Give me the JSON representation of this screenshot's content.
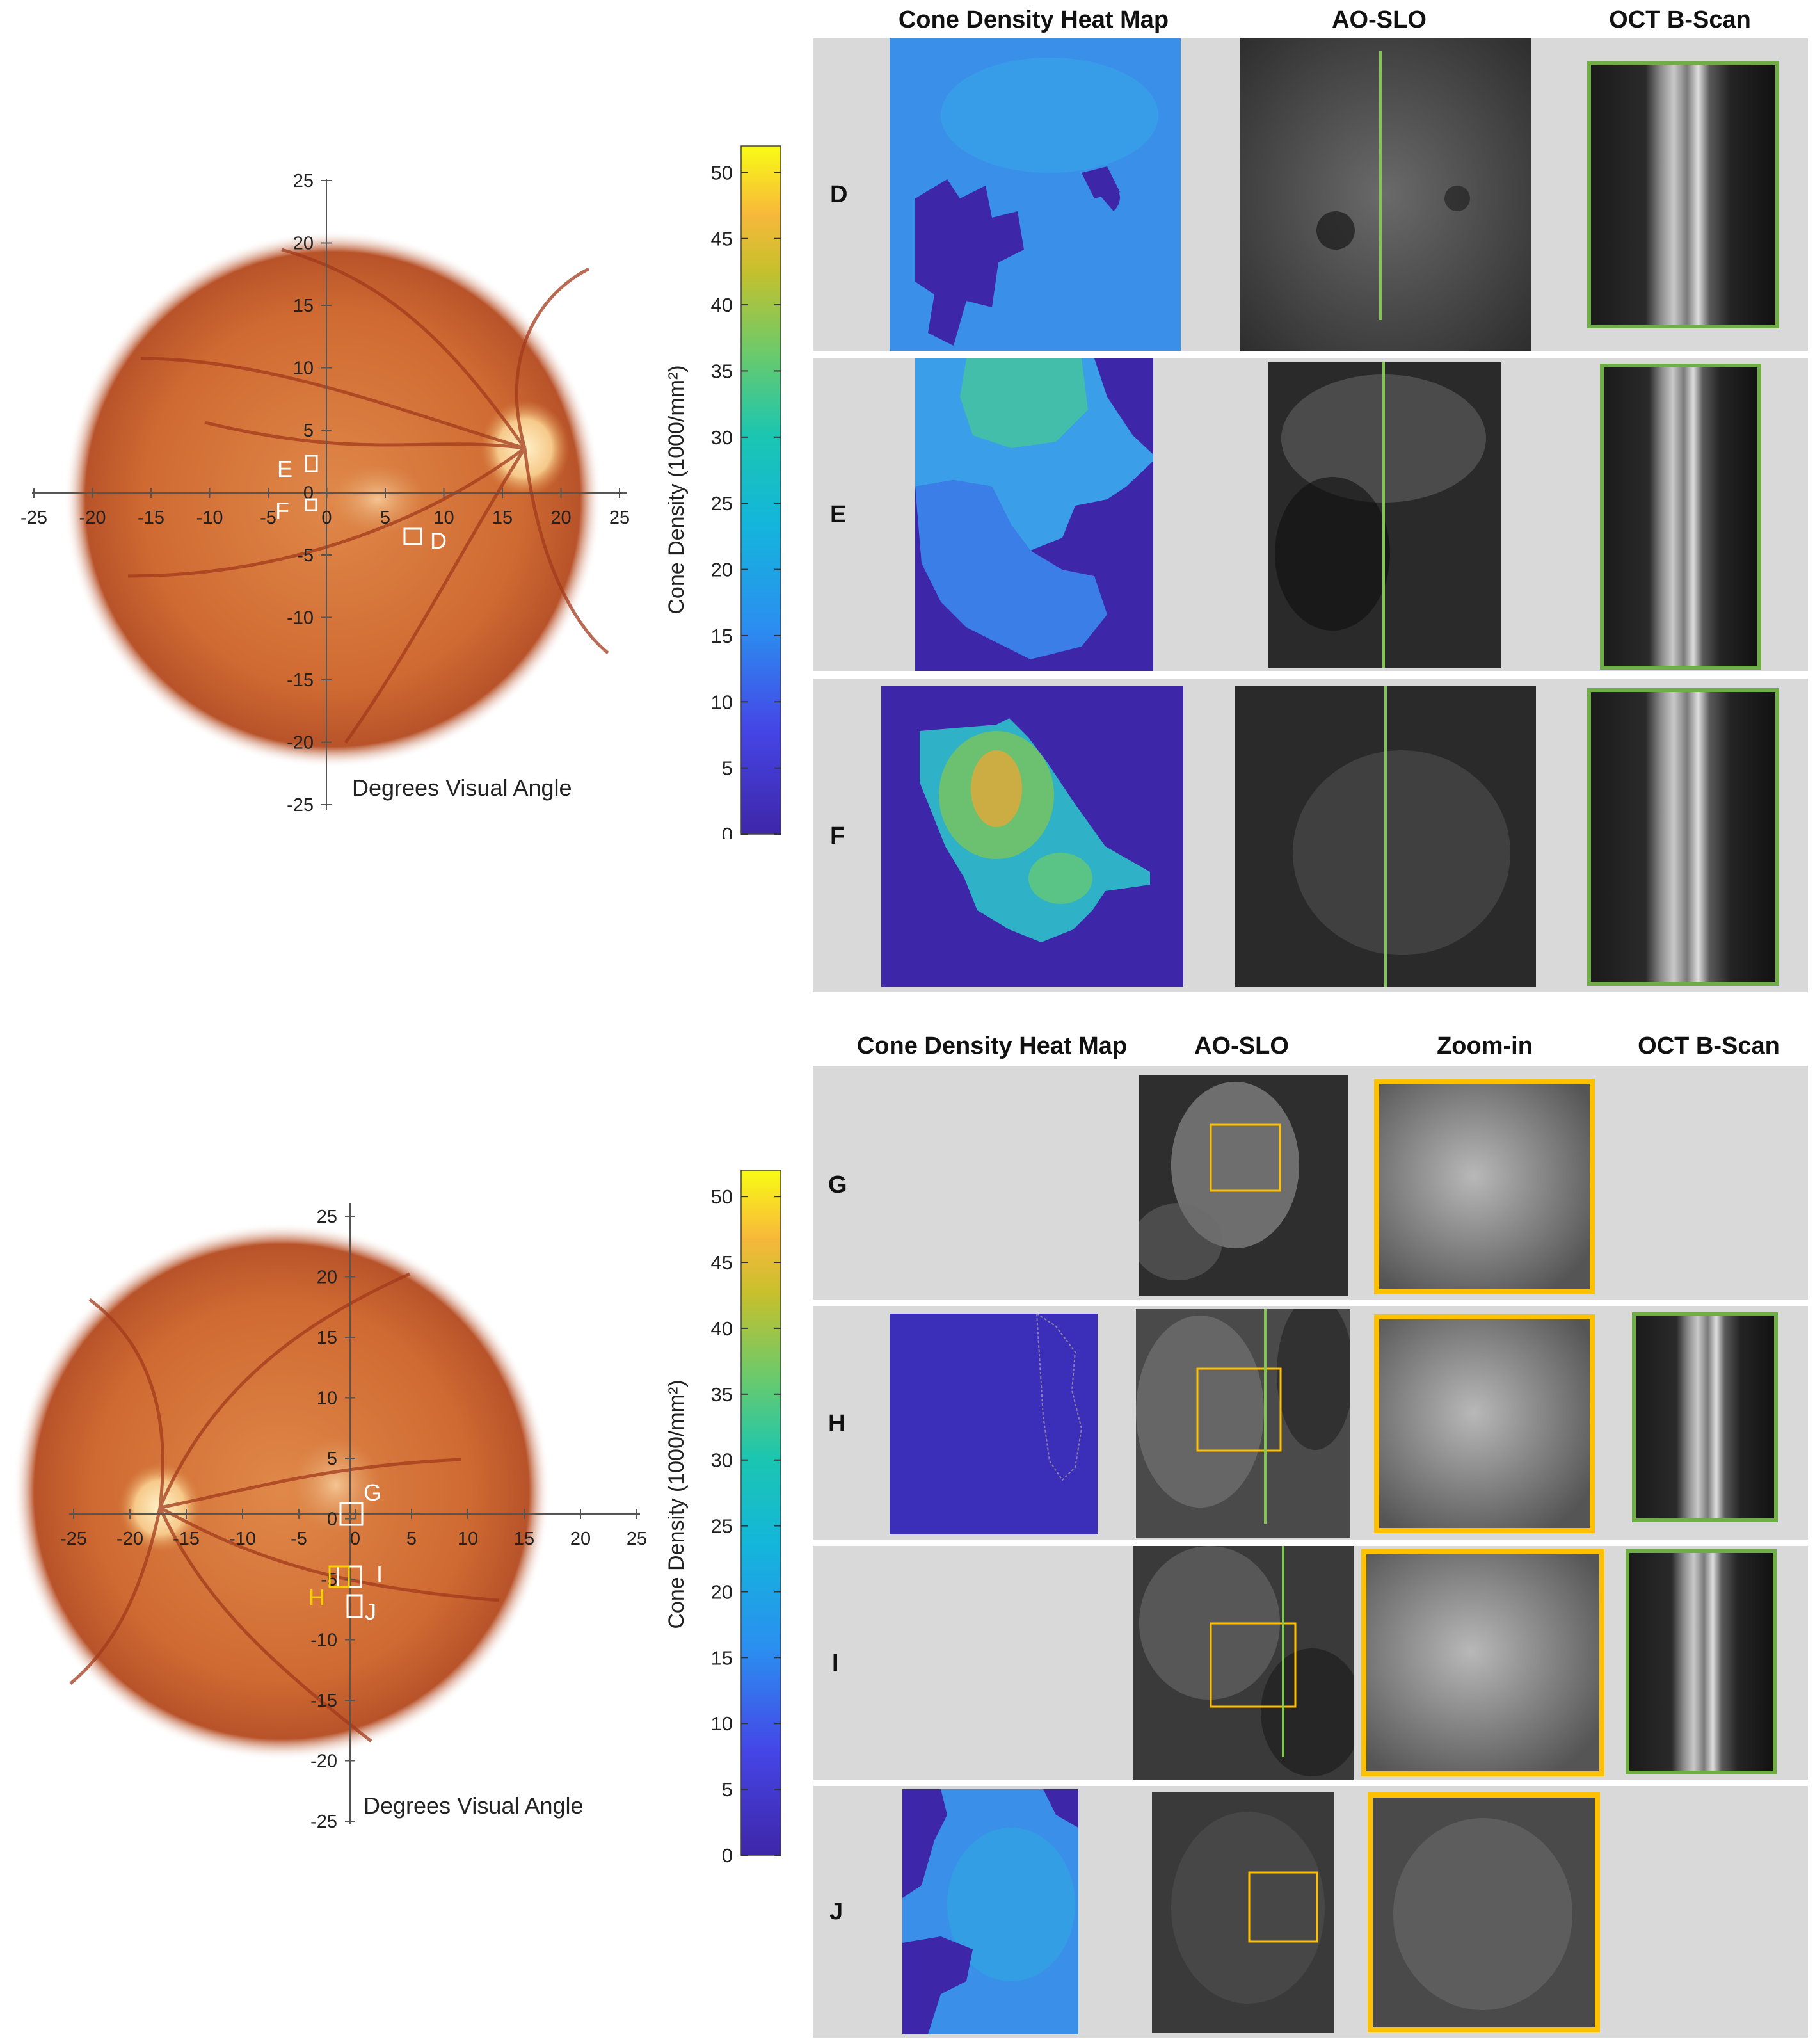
{
  "top": {
    "headers": {
      "heatmap": "Cone Density Heat Map",
      "aoslo": "AO-SLO",
      "oct": "OCT B-Scan"
    },
    "rows": [
      "D",
      "E",
      "F"
    ],
    "fundus": {
      "xticks": [
        "-25",
        "-20",
        "-15",
        "-10",
        "-5",
        "0",
        "5",
        "10",
        "15",
        "20",
        "25"
      ],
      "yticks": [
        "25",
        "20",
        "15",
        "10",
        "5",
        "0",
        "-5",
        "-10",
        "-15",
        "-20",
        "-25"
      ],
      "axis_label": "Degrees Visual Angle",
      "boxes": [
        {
          "label": "E",
          "color": "#ffffff"
        },
        {
          "label": "F",
          "color": "#ffffff"
        },
        {
          "label": "D",
          "color": "#ffffff"
        }
      ]
    },
    "colorbar": {
      "ticks": [
        "50",
        "45",
        "40",
        "35",
        "30",
        "25",
        "20",
        "15",
        "10",
        "5",
        "0"
      ],
      "label": "Cone Density (1000/mm²)"
    }
  },
  "bottom": {
    "headers": {
      "heatmap": "Cone Density Heat Map",
      "aoslo": "AO-SLO",
      "zoom": "Zoom-in",
      "oct": "OCT B-Scan"
    },
    "rows": [
      "G",
      "H",
      "I",
      "J"
    ],
    "fundus": {
      "xticks": [
        "-25",
        "-20",
        "-15",
        "-10",
        "-5",
        "0",
        "5",
        "10",
        "15",
        "20",
        "25"
      ],
      "yticks": [
        "25",
        "20",
        "15",
        "10",
        "5",
        "0",
        "-5",
        "-10",
        "-15",
        "-20",
        "-25"
      ],
      "axis_label": "Degrees Visual Angle",
      "boxes": [
        {
          "label": "G",
          "color": "#ffffff"
        },
        {
          "label": "I",
          "color": "#ffffff"
        },
        {
          "label": "H",
          "color": "#f5d000"
        },
        {
          "label": "J",
          "color": "#ffffff"
        }
      ]
    },
    "colorbar": {
      "ticks": [
        "50",
        "45",
        "40",
        "35",
        "30",
        "25",
        "20",
        "15",
        "10",
        "5",
        "0"
      ],
      "label": "Cone Density (1000/mm²)"
    }
  },
  "colors": {
    "panel_bg": "#d9d9d9",
    "oct_frame": "#70ad47",
    "zoom_frame": "#ffc000",
    "scan_line": "#7ec850",
    "heat_low": "#3e26a8",
    "heat_mid": "#2b8ef0",
    "heat_high": "#f9fb15"
  }
}
